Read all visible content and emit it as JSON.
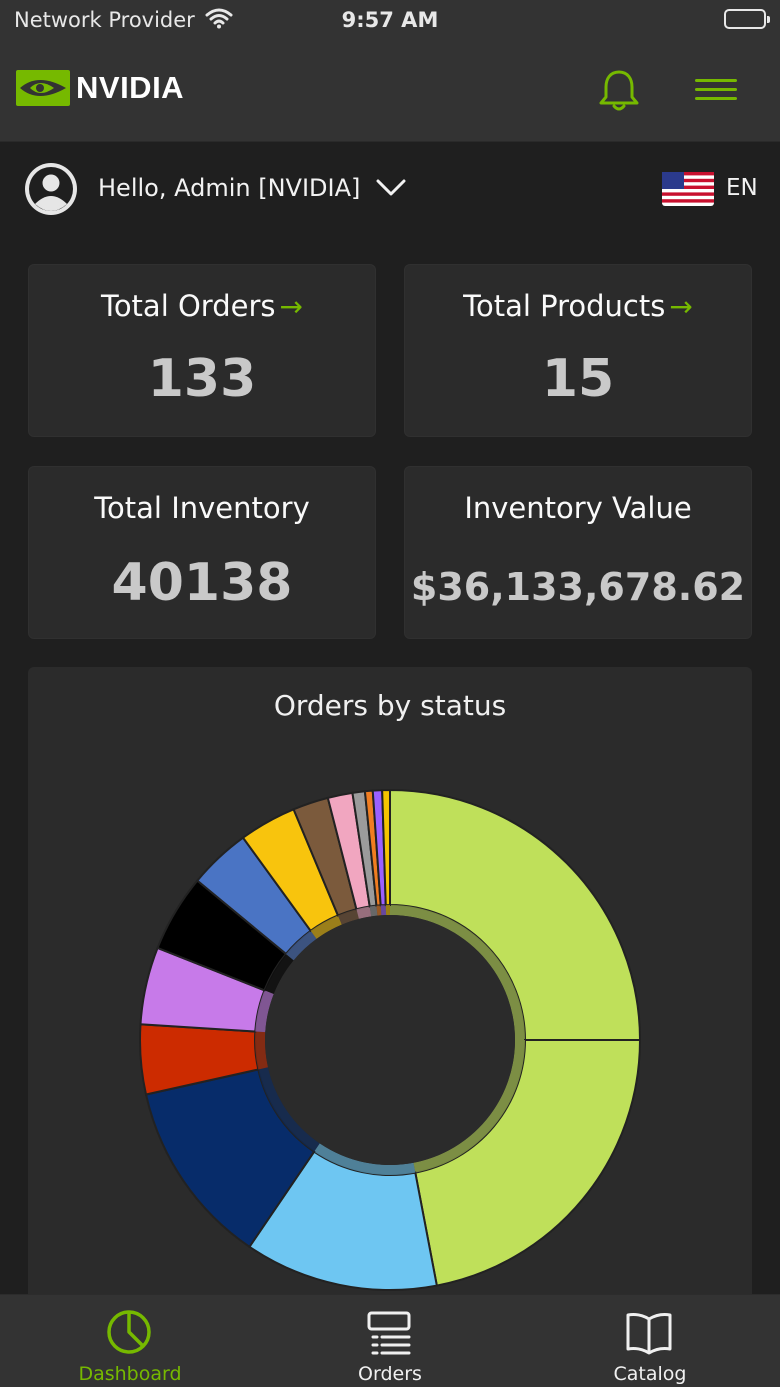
{
  "status_bar": {
    "provider": "Network Provider",
    "time": "9:57 AM"
  },
  "header": {
    "brand": "NVIDIA",
    "bell_icon": "bell-icon",
    "menu_icon": "hamburger-menu-icon"
  },
  "user": {
    "greeting": "Hello, Admin [NVIDIA]",
    "language": "EN",
    "flag_icon": "us-flag-icon"
  },
  "cards": {
    "total_orders": {
      "title": "Total Orders",
      "value": "133",
      "arrow": "→"
    },
    "total_products": {
      "title": "Total Products",
      "value": "15",
      "arrow": "→"
    },
    "total_inventory": {
      "title": "Total Inventory",
      "value": "40138"
    },
    "inventory_value": {
      "title": "Inventory Value",
      "value": "$36,133,678.62"
    }
  },
  "chart_data": {
    "type": "pie",
    "title": "Orders by status",
    "donut": true,
    "slices": [
      {
        "value": 25.0,
        "color": "#bfe05a"
      },
      {
        "value": 22.0,
        "color": "#bfe05a"
      },
      {
        "value": 12.5,
        "color": "#6ec6f2"
      },
      {
        "value": 12.0,
        "color": "#072c6a"
      },
      {
        "value": 4.5,
        "color": "#cc2b00"
      },
      {
        "value": 5.0,
        "color": "#c77ae9"
      },
      {
        "value": 5.0,
        "color": "#000000"
      },
      {
        "value": 4.0,
        "color": "#4a74c4"
      },
      {
        "value": 3.7,
        "color": "#f8c40d"
      },
      {
        "value": 2.3,
        "color": "#7b5a3c"
      },
      {
        "value": 1.6,
        "color": "#f1a6c0"
      },
      {
        "value": 0.8,
        "color": "#9b9b9b"
      },
      {
        "value": 0.5,
        "color": "#f07d21"
      },
      {
        "value": 0.6,
        "color": "#9b60ff"
      },
      {
        "value": 0.5,
        "color": "#f5c400"
      }
    ]
  },
  "tabs": [
    {
      "label": "Dashboard",
      "icon": "pie-chart-icon",
      "active": true
    },
    {
      "label": "Orders",
      "icon": "list-icon",
      "active": false
    },
    {
      "label": "Catalog",
      "icon": "book-icon",
      "active": false
    }
  ],
  "colors": {
    "accent": "#76b900",
    "background": "#1f1f1f",
    "card": "#2b2b2b",
    "bar": "#333333"
  }
}
